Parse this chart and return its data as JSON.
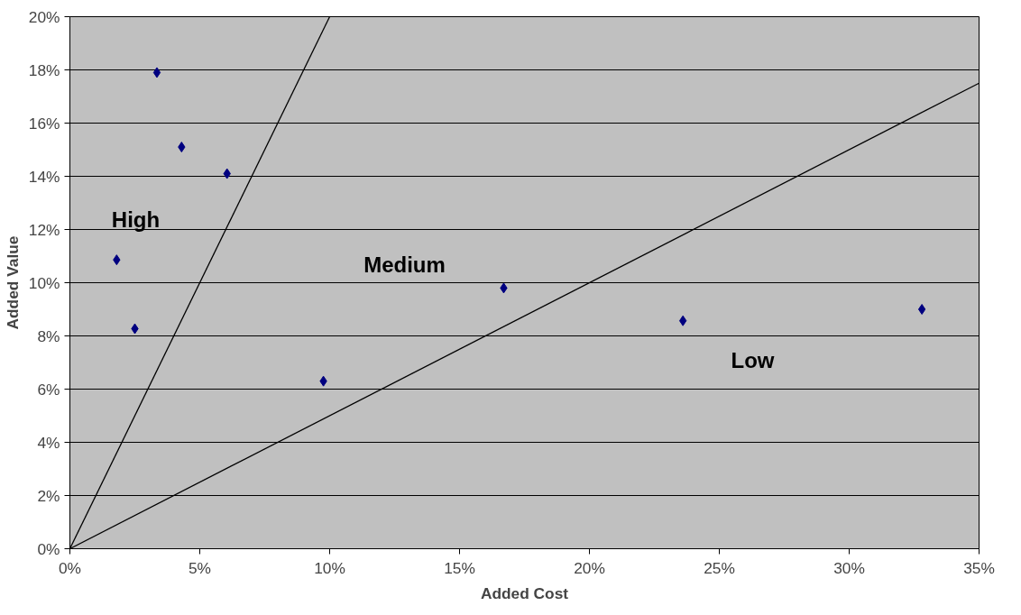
{
  "chart_data": {
    "type": "scatter",
    "xlabel": "Added Cost",
    "ylabel": "Added Value",
    "x": [
      3.35,
      4.3,
      6.05,
      1.8,
      2.5,
      9.76,
      16.7,
      23.6,
      32.8
    ],
    "series": [
      {
        "color": "#000080",
        "values": [
          17.9,
          15.1,
          14.1,
          10.86,
          8.27,
          6.3,
          9.8,
          8.57,
          9.0
        ]
      },
      {
        "type": "line",
        "color": "#000000",
        "x": [
          0,
          10
        ],
        "values": [
          0,
          20
        ],
        "marker": "none"
      },
      {
        "type": "line",
        "color": "#000000",
        "x": [
          0,
          35
        ],
        "values": [
          0,
          17.5
        ],
        "marker": "none"
      }
    ],
    "marker": "diamond",
    "line_style": "solid",
    "xlim": [
      0,
      35
    ],
    "ylim": [
      0,
      20
    ],
    "xticks": [
      {
        "value": 0,
        "label": "0%"
      },
      {
        "value": 5,
        "label": "5%"
      },
      {
        "value": 10,
        "label": "10%"
      },
      {
        "value": 15,
        "label": "15%"
      },
      {
        "value": 20,
        "label": "20%"
      },
      {
        "value": 25,
        "label": "25%"
      },
      {
        "value": 30,
        "label": "30%"
      },
      {
        "value": 35,
        "label": "35%"
      }
    ],
    "yticks": [
      {
        "value": 0,
        "label": "0%"
      },
      {
        "value": 2,
        "label": "2%"
      },
      {
        "value": 4,
        "label": "4%"
      },
      {
        "value": 6,
        "label": "6%"
      },
      {
        "value": 8,
        "label": "8%"
      },
      {
        "value": 10,
        "label": "10%"
      },
      {
        "value": 12,
        "label": "12%"
      },
      {
        "value": 14,
        "label": "14%"
      },
      {
        "value": 16,
        "label": "16%"
      },
      {
        "value": 18,
        "label": "18%"
      },
      {
        "value": 20,
        "label": "20%"
      }
    ],
    "grid": "y",
    "annotations": [
      "High",
      "Medium",
      "Low"
    ]
  }
}
